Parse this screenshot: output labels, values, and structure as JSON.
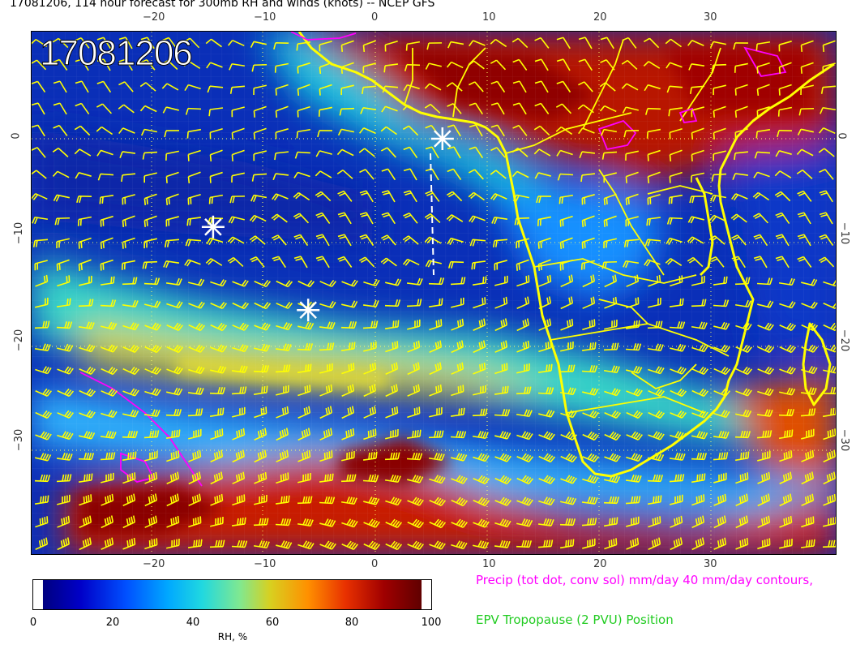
{
  "title": "17081206, 114 hour forecast for 300mb RH and winds (knots) -- NCEP GFS",
  "date_stamp": "17081206",
  "axes": {
    "lon_ticks_top": [
      "−20",
      "−10",
      "0",
      "10",
      "20",
      "30"
    ],
    "lon_ticks_bottom": [
      "−20",
      "−10",
      "0",
      "10",
      "20",
      "30"
    ],
    "lat_ticks_left": [
      "0",
      "−10",
      "−20",
      "−30"
    ],
    "lat_ticks_right": [
      "0",
      "−10",
      "−20",
      "−30"
    ]
  },
  "colorbar": {
    "label": "RH, %",
    "ticks": [
      "0",
      "20",
      "40",
      "60",
      "80",
      "100"
    ],
    "colors": [
      "#000080",
      "#0000c8",
      "#0050ff",
      "#00a8ff",
      "#20d8e0",
      "#80e890",
      "#d8d020",
      "#ff9000",
      "#e83000",
      "#a00000",
      "#600000"
    ]
  },
  "legend": {
    "precip": "Precip (tot dot, conv sol) mm/day 40 mm/day contours,",
    "epv": "EPV Tropopause (2 PVU) Position"
  },
  "colors": {
    "coastline": "#ffff00",
    "barbs": "#ffff00",
    "precip_contours": "#ff00ff",
    "markers": "#ffffff"
  },
  "markers": [
    {
      "name": "storm-marker-1",
      "lon": -14.5,
      "lat": -8.5
    },
    {
      "name": "storm-marker-2",
      "lon": -6,
      "lat": -16.5
    },
    {
      "name": "storm-marker-3",
      "lon": 6,
      "lat": 0
    }
  ]
}
